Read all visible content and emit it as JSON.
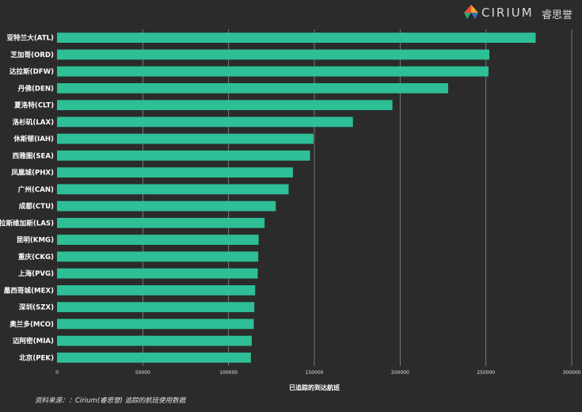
{
  "brand": {
    "name": "CIRIUM",
    "name_cn": "睿思誉",
    "logo_colors": [
      "#e94e3c",
      "#f6a623",
      "#2fa96a",
      "#3b6fc4"
    ]
  },
  "colors": {
    "background": "#2b2b2b",
    "bar": "#2ebf96",
    "grid": "#8a8a8a"
  },
  "source_text": "资料来源：：Cirium(睿思誉) 追踪的航班使用数据",
  "chart_data": {
    "type": "bar",
    "orientation": "horizontal",
    "title": "",
    "xlabel": "已追踪的到达航班",
    "ylabel": "",
    "xlim": [
      0,
      300000
    ],
    "xticks": [
      0,
      50000,
      100000,
      150000,
      200000,
      250000,
      300000
    ],
    "xtick_labels": [
      "0",
      "50000",
      "100000",
      "150000",
      "200000",
      "250000",
      "300000"
    ],
    "grid": true,
    "categories": [
      "亚特兰大(ATL)",
      "芝加哥(ORD)",
      "达拉斯(DFW)",
      "丹佛(DEN)",
      "夏洛特(CLT)",
      "洛杉矶(LAX)",
      "休斯顿(IAH)",
      "西雅图(SEA)",
      "凤凰城(PHX)",
      "广州(CAN)",
      "成都(CTU)",
      "拉斯维加斯(LAS)",
      "昆明(KMG)",
      "重庆(CKG)",
      "上海(PVG)",
      "墨西哥城(MEX)",
      "深圳(SZX)",
      "奥兰多(MCO)",
      "迈阿密(MIA)",
      "北京(PEK)"
    ],
    "values": [
      279000,
      252000,
      251500,
      228000,
      195500,
      172500,
      149500,
      147500,
      137500,
      135000,
      127500,
      121000,
      117500,
      117300,
      117000,
      115500,
      115000,
      114700,
      113500,
      113000
    ]
  }
}
